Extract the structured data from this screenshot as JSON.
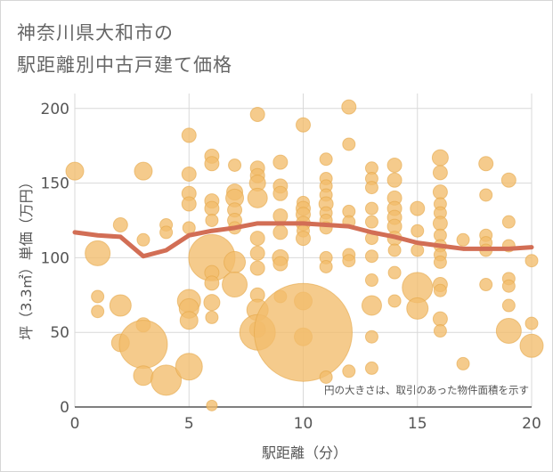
{
  "title_lines": [
    "神奈川県大和市の",
    "駅距離別中古戸建て価格"
  ],
  "colors": {
    "bubble": "#f2bc6b",
    "bubble_stroke": "#e4a648",
    "line": "#d26e55",
    "grid": "#d9d9d9",
    "axis": "#555555"
  },
  "chart_data": {
    "type": "scatter",
    "xlabel": "駅距離（分）",
    "ylabel": "坪（3.3㎡）単価（万円）",
    "xlim": [
      0,
      20
    ],
    "ylim": [
      0,
      210
    ],
    "x_ticks": [
      0,
      5,
      10,
      15,
      20
    ],
    "y_ticks": [
      0,
      50,
      100,
      150,
      200
    ],
    "grid": true,
    "annotation": "円の大きさは、取引のあった物件面積を示す",
    "bubbles": [
      [
        0,
        158,
        10
      ],
      [
        1,
        103,
        14
      ],
      [
        1,
        74,
        7
      ],
      [
        1,
        64,
        7
      ],
      [
        2,
        122,
        8
      ],
      [
        2,
        68,
        12
      ],
      [
        2,
        43,
        10
      ],
      [
        3,
        158,
        10
      ],
      [
        3,
        112,
        7
      ],
      [
        3,
        55,
        8
      ],
      [
        3,
        42,
        27
      ],
      [
        3,
        21,
        11
      ],
      [
        4,
        122,
        7
      ],
      [
        4,
        117,
        7
      ],
      [
        4,
        18,
        17
      ],
      [
        5,
        182,
        8
      ],
      [
        5,
        156,
        8
      ],
      [
        5,
        143,
        8
      ],
      [
        5,
        136,
        8
      ],
      [
        5,
        120,
        7
      ],
      [
        5,
        71,
        13
      ],
      [
        5,
        66,
        11
      ],
      [
        5,
        58,
        10
      ],
      [
        5,
        27,
        15
      ],
      [
        6,
        168,
        8
      ],
      [
        6,
        163,
        8
      ],
      [
        6,
        138,
        8
      ],
      [
        6,
        133,
        8
      ],
      [
        6,
        125,
        7
      ],
      [
        6,
        100,
        26
      ],
      [
        6,
        90,
        8
      ],
      [
        6,
        83,
        8
      ],
      [
        6,
        70,
        9
      ],
      [
        6,
        60,
        7
      ],
      [
        6,
        1,
        6
      ],
      [
        7,
        162,
        7
      ],
      [
        7,
        144,
        9
      ],
      [
        7,
        140,
        10
      ],
      [
        7,
        132,
        8
      ],
      [
        7,
        125,
        8
      ],
      [
        7,
        120,
        7
      ],
      [
        7,
        97,
        12
      ],
      [
        7,
        82,
        14
      ],
      [
        8,
        196,
        8
      ],
      [
        8,
        160,
        8
      ],
      [
        8,
        155,
        8
      ],
      [
        8,
        150,
        9
      ],
      [
        8,
        140,
        11
      ],
      [
        8,
        113,
        8
      ],
      [
        8,
        103,
        8
      ],
      [
        8,
        93,
        8
      ],
      [
        8,
        75,
        8
      ],
      [
        8,
        65,
        12
      ],
      [
        8,
        52,
        9
      ],
      [
        8,
        50,
        20
      ],
      [
        9,
        164,
        8
      ],
      [
        9,
        148,
        8
      ],
      [
        9,
        143,
        8
      ],
      [
        9,
        128,
        8
      ],
      [
        9,
        117,
        8
      ],
      [
        9,
        100,
        9
      ],
      [
        9,
        96,
        8
      ],
      [
        9,
        74,
        7
      ],
      [
        10,
        189,
        8
      ],
      [
        10,
        137,
        7
      ],
      [
        10,
        133,
        8
      ],
      [
        10,
        129,
        8
      ],
      [
        10,
        123,
        8
      ],
      [
        10,
        118,
        7
      ],
      [
        10,
        113,
        8
      ],
      [
        10,
        71,
        10
      ],
      [
        10,
        47,
        10
      ],
      [
        10,
        50,
        55
      ],
      [
        11,
        166,
        7
      ],
      [
        11,
        153,
        7
      ],
      [
        11,
        148,
        7
      ],
      [
        11,
        142,
        7
      ],
      [
        11,
        136,
        8
      ],
      [
        11,
        130,
        7
      ],
      [
        11,
        125,
        7
      ],
      [
        11,
        120,
        7
      ],
      [
        11,
        100,
        7
      ],
      [
        11,
        94,
        7
      ],
      [
        11,
        20,
        7
      ],
      [
        12,
        201,
        8
      ],
      [
        12,
        176,
        7
      ],
      [
        12,
        131,
        7
      ],
      [
        12,
        124,
        7
      ],
      [
        12,
        102,
        7
      ],
      [
        12,
        98,
        7
      ],
      [
        12,
        24,
        7
      ],
      [
        13,
        160,
        7
      ],
      [
        13,
        153,
        7
      ],
      [
        13,
        147,
        7
      ],
      [
        13,
        133,
        7
      ],
      [
        13,
        124,
        7
      ],
      [
        13,
        113,
        7
      ],
      [
        13,
        101,
        7
      ],
      [
        13,
        85,
        7
      ],
      [
        13,
        68,
        11
      ],
      [
        13,
        47,
        7
      ],
      [
        13,
        26,
        7
      ],
      [
        14,
        162,
        8
      ],
      [
        14,
        152,
        8
      ],
      [
        14,
        140,
        8
      ],
      [
        14,
        133,
        8
      ],
      [
        14,
        127,
        8
      ],
      [
        14,
        121,
        8
      ],
      [
        14,
        113,
        8
      ],
      [
        14,
        105,
        7
      ],
      [
        14,
        90,
        7
      ],
      [
        14,
        71,
        7
      ],
      [
        15,
        133,
        8
      ],
      [
        15,
        118,
        7
      ],
      [
        15,
        105,
        7
      ],
      [
        15,
        80,
        17
      ],
      [
        15,
        66,
        12
      ],
      [
        16,
        167,
        9
      ],
      [
        16,
        157,
        8
      ],
      [
        16,
        144,
        8
      ],
      [
        16,
        136,
        7
      ],
      [
        16,
        130,
        7
      ],
      [
        16,
        123,
        8
      ],
      [
        16,
        115,
        7
      ],
      [
        16,
        108,
        7
      ],
      [
        16,
        102,
        7
      ],
      [
        16,
        97,
        7
      ],
      [
        16,
        82,
        8
      ],
      [
        16,
        78,
        7
      ],
      [
        16,
        59,
        8
      ],
      [
        16,
        51,
        7
      ],
      [
        17,
        112,
        7
      ],
      [
        17,
        29,
        7
      ],
      [
        18,
        163,
        8
      ],
      [
        18,
        142,
        7
      ],
      [
        18,
        115,
        7
      ],
      [
        18,
        110,
        7
      ],
      [
        18,
        105,
        7
      ],
      [
        18,
        82,
        7
      ],
      [
        19,
        152,
        8
      ],
      [
        19,
        124,
        7
      ],
      [
        19,
        108,
        7
      ],
      [
        19,
        86,
        7
      ],
      [
        19,
        81,
        7
      ],
      [
        19,
        68,
        7
      ],
      [
        19,
        51,
        14
      ],
      [
        20,
        98,
        7
      ],
      [
        20,
        56,
        7
      ],
      [
        20,
        41,
        13
      ]
    ],
    "trend": {
      "x": [
        0,
        1,
        2,
        3,
        4,
        5,
        6,
        7,
        8,
        9,
        10,
        11,
        12,
        13,
        14,
        15,
        16,
        17,
        18,
        19,
        20
      ],
      "y": [
        117,
        115,
        114,
        101,
        105,
        115,
        118,
        120,
        123,
        123,
        123,
        122,
        121,
        117,
        114,
        110,
        108,
        106,
        106,
        106,
        107
      ]
    }
  }
}
